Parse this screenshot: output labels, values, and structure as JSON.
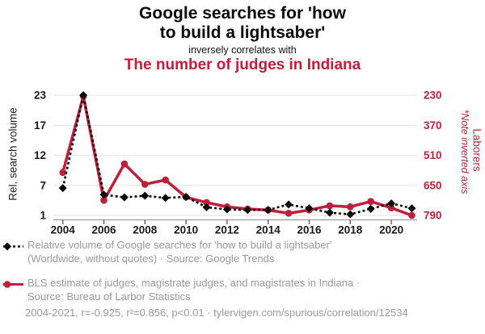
{
  "header": {
    "title_line1": "Google searches for 'how",
    "title_line2": "to build a lightsaber'",
    "connector": "inversely correlates with",
    "subtitle": "The number of judges in Indiana"
  },
  "colors": {
    "red": "#c01f3a",
    "black": "#0b0b0b",
    "gray_text": "#999999",
    "grid": "#e7e7e7",
    "axis": "#999999",
    "tick": "#555555"
  },
  "chart_data": {
    "type": "line",
    "x": [
      2004,
      2005,
      2006,
      2007,
      2008,
      2009,
      2010,
      2011,
      2012,
      2013,
      2014,
      2015,
      2016,
      2017,
      2018,
      2019,
      2020,
      2021
    ],
    "x_tick_labels": [
      "2004",
      "2006",
      "2008",
      "2010",
      "2012",
      "2014",
      "2016",
      "2018",
      "2020"
    ],
    "grid": true,
    "legend_position": "below",
    "left_axis": {
      "title": "Rel. search volume",
      "ticks": [
        23,
        17,
        12,
        7,
        1
      ],
      "range": [
        1,
        23
      ]
    },
    "right_axis": {
      "title": "Laborers",
      "note": "*Note inverted axis",
      "ticks": [
        230,
        370,
        510,
        650,
        790
      ],
      "range": [
        230,
        790
      ],
      "inverted": true
    },
    "series": [
      {
        "name": "Relative volume of Google searches for 'how to build a lightsaber'",
        "axis": "left",
        "style": "dashed",
        "marker": "diamond",
        "values": [
          6,
          23,
          4.8,
          4.3,
          4.6,
          4.2,
          4.4,
          2.5,
          2.1,
          2,
          2,
          3,
          2.3,
          1.5,
          1.2,
          2.2,
          3.2,
          2.3
        ]
      },
      {
        "name": "BLS estimate of judges, magistrate judges, and magistrates in Indiana",
        "axis": "right",
        "style": "solid",
        "marker": "circle",
        "values": [
          590,
          235,
          720,
          550,
          645,
          625,
          705,
          730,
          750,
          760,
          765,
          780,
          765,
          745,
          750,
          725,
          755,
          790
        ]
      }
    ]
  },
  "legend": {
    "series1_line1": "Relative volume of Google searches for 'how to build a lightsaber'",
    "series1_line2": "(Worldwide, without quotes) · Source: Google Trends",
    "series2_line1": "BLS estimate of judges, magistrate judges, and magistrates in Indiana ·",
    "series2_line2": "Source: Bureau of Larbor Statistics",
    "footer": "2004-2021, r=-0.925, r²=0.856, p<0.01 · tylervigen.com/spurious/correlation/12534"
  }
}
